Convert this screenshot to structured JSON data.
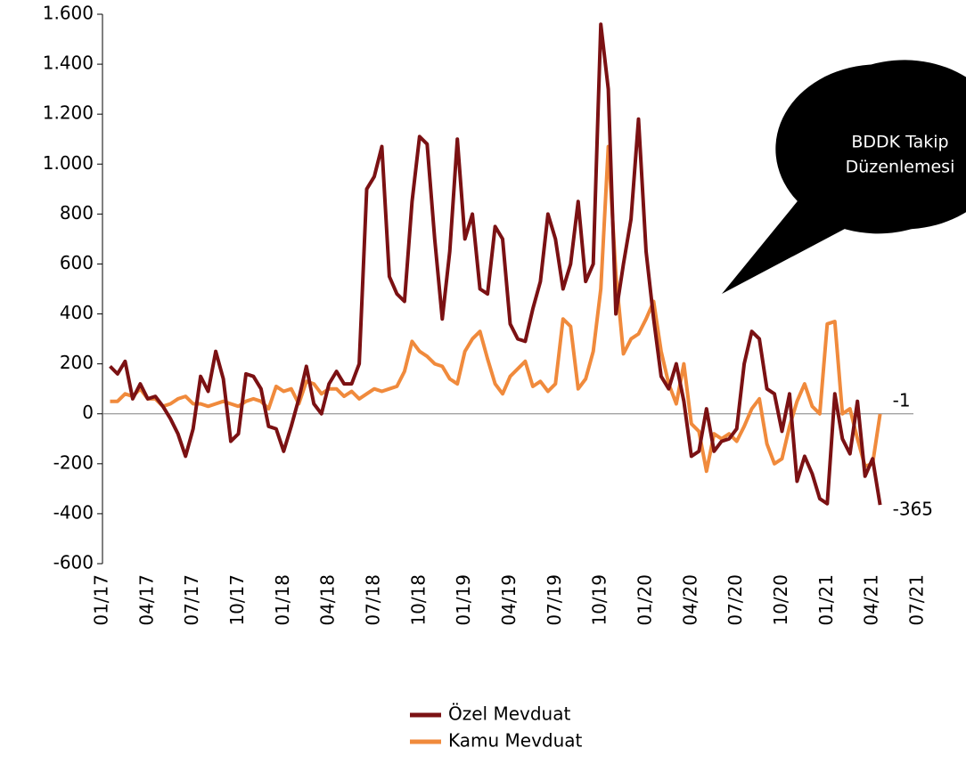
{
  "chart_data": {
    "type": "line",
    "annotation": [
      "BDDK Takip",
      "Düzenlemesi"
    ],
    "categories": [
      "01/17",
      null,
      null,
      null,
      null,
      null,
      "04/17",
      null,
      null,
      null,
      null,
      null,
      "07/17",
      null,
      null,
      null,
      null,
      null,
      "10/17",
      null,
      null,
      null,
      null,
      null,
      "01/18",
      null,
      null,
      null,
      null,
      null,
      "04/18",
      null,
      null,
      null,
      null,
      null,
      "07/18",
      null,
      null,
      null,
      null,
      null,
      "10/18",
      null,
      null,
      null,
      null,
      null,
      "01/19",
      null,
      null,
      null,
      null,
      null,
      "04/19",
      null,
      null,
      null,
      null,
      null,
      "07/19",
      null,
      null,
      null,
      null,
      null,
      "10/19",
      null,
      null,
      null,
      null,
      null,
      "01/20",
      null,
      null,
      null,
      null,
      null,
      "04/20",
      null,
      null,
      null,
      null,
      null,
      "07/20",
      null,
      null,
      null,
      null,
      null,
      "10/20",
      null,
      null,
      null,
      null,
      null,
      "01/21",
      null,
      null,
      null,
      null,
      null,
      "04/21",
      null,
      null,
      null,
      null,
      null,
      "07/21"
    ],
    "series": [
      {
        "name": "Özel Mevduat",
        "color": "#7b1113",
        "values": [
          null,
          190,
          160,
          210,
          60,
          120,
          60,
          70,
          30,
          -20,
          -80,
          -170,
          -60,
          150,
          90,
          250,
          140,
          -110,
          -80,
          160,
          150,
          100,
          -50,
          -60,
          -150,
          -50,
          60,
          190,
          40,
          0,
          120,
          170,
          120,
          120,
          200,
          900,
          950,
          1070,
          550,
          480,
          450,
          850,
          1110,
          1080,
          700,
          380,
          650,
          1100,
          700,
          800,
          500,
          480,
          750,
          700,
          360,
          300,
          290,
          420,
          530,
          800,
          700,
          500,
          600,
          850,
          530,
          600,
          1560,
          1300,
          400,
          600,
          780,
          1180,
          650,
          380,
          150,
          100,
          200,
          50,
          -170,
          -150,
          20,
          -150,
          -110,
          -100,
          -60,
          200,
          330,
          300,
          100,
          80,
          -70,
          80,
          -270,
          -170,
          -240,
          -340,
          -360,
          80,
          -100,
          -160,
          50,
          -250,
          -180,
          -365,
          null,
          null,
          null,
          null,
          null
        ],
        "value_labels": [
          null,
          null,
          null,
          null,
          null,
          null,
          null,
          null,
          null,
          null,
          null,
          null,
          null,
          null,
          null,
          null,
          null,
          null,
          null,
          null,
          null,
          null,
          null,
          null,
          null,
          null,
          null,
          null,
          null,
          null,
          null,
          null,
          null,
          null,
          null,
          null,
          null,
          null,
          null,
          null,
          null,
          null,
          null,
          null,
          null,
          null,
          null,
          null,
          null,
          null,
          null,
          null,
          null,
          null,
          null,
          null,
          null,
          null,
          null,
          null,
          null,
          null,
          null,
          null,
          null,
          null,
          null,
          null,
          null,
          null,
          null,
          null,
          null,
          null,
          null,
          null,
          null,
          null,
          null,
          null,
          null,
          null,
          null,
          null,
          null,
          null,
          null,
          null,
          null,
          null,
          null,
          null,
          null,
          null,
          null,
          null,
          null,
          null,
          null,
          null,
          null,
          null,
          null,
          "-365",
          null,
          null,
          null,
          null,
          null
        ]
      },
      {
        "name": "Kamu Mevduat",
        "color": "#f08a3c",
        "values": [
          null,
          50,
          50,
          80,
          70,
          100,
          60,
          60,
          30,
          40,
          60,
          70,
          40,
          40,
          30,
          40,
          50,
          40,
          30,
          50,
          60,
          50,
          20,
          110,
          90,
          100,
          40,
          130,
          120,
          80,
          100,
          100,
          70,
          90,
          60,
          80,
          100,
          90,
          100,
          110,
          170,
          290,
          250,
          230,
          200,
          190,
          140,
          120,
          250,
          300,
          330,
          220,
          120,
          80,
          150,
          180,
          210,
          110,
          130,
          90,
          120,
          380,
          350,
          100,
          140,
          250,
          500,
          1070,
          560,
          240,
          300,
          320,
          380,
          450,
          250,
          120,
          40,
          200,
          -40,
          -70,
          -230,
          -80,
          -100,
          -80,
          -110,
          -50,
          20,
          60,
          -120,
          -200,
          -180,
          -50,
          50,
          120,
          30,
          0,
          360,
          370,
          0,
          20,
          -100,
          -210,
          -200,
          -1,
          null,
          null,
          null,
          null,
          null
        ],
        "value_labels": [
          null,
          null,
          null,
          null,
          null,
          null,
          null,
          null,
          null,
          null,
          null,
          null,
          null,
          null,
          null,
          null,
          null,
          null,
          null,
          null,
          null,
          null,
          null,
          null,
          null,
          null,
          null,
          null,
          null,
          null,
          null,
          null,
          null,
          null,
          null,
          null,
          null,
          null,
          null,
          null,
          null,
          null,
          null,
          null,
          null,
          null,
          null,
          null,
          null,
          null,
          null,
          null,
          null,
          null,
          null,
          null,
          null,
          null,
          null,
          null,
          null,
          null,
          null,
          null,
          null,
          null,
          null,
          null,
          null,
          null,
          null,
          null,
          null,
          null,
          null,
          null,
          null,
          null,
          null,
          null,
          null,
          null,
          null,
          null,
          null,
          null,
          null,
          null,
          null,
          null,
          null,
          null,
          null,
          null,
          null,
          null,
          null,
          null,
          null,
          null,
          null,
          null,
          null,
          "-1",
          null,
          null,
          null,
          null,
          null
        ]
      }
    ],
    "ylim": [
      -600,
      1600
    ],
    "yticks": [
      -600,
      -400,
      -200,
      0,
      200,
      400,
      600,
      800,
      {
        "value": 1000,
        "label": "1.000"
      },
      {
        "value": 1200,
        "label": "1.200"
      },
      {
        "value": 1400,
        "label": "1.400"
      },
      {
        "value": 1600,
        "label": "1.600"
      }
    ]
  }
}
